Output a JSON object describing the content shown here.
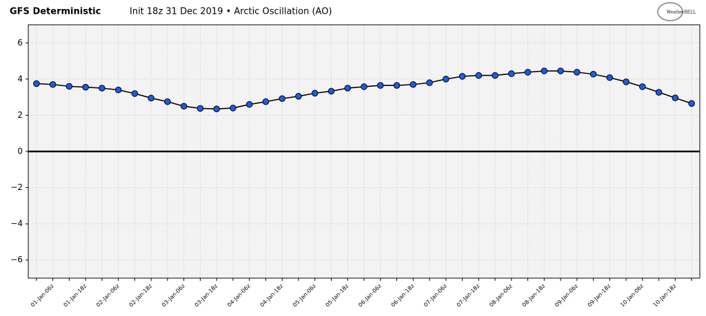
{
  "chart_data": {
    "type": "line",
    "title": "GFS Deterministic",
    "subtitle": "Init 18z 31 Dec 2019 • Arctic Oscillation (AO)",
    "logo": "WeatherBELL",
    "categories": [
      null,
      "01-Jan-06z",
      null,
      "01-Jan-18z",
      null,
      "02-Jan-06z",
      null,
      "02-Jan-18z",
      null,
      "03-Jan-06z",
      null,
      "03-Jan-18z",
      null,
      "04-Jan-06z",
      null,
      "04-Jan-18z",
      null,
      "05-Jan-06z",
      null,
      "05-Jan-18z",
      null,
      "06-Jan-06z",
      null,
      "06-Jan-18z",
      null,
      "07-Jan-06z",
      null,
      "07-Jan-18z",
      null,
      "08-Jan-06z",
      null,
      "08-Jan-18z",
      null,
      "09-Jan-06z",
      null,
      "09-Jan-18z",
      null,
      "10-Jan-06z",
      null,
      "10-Jan-18z",
      null
    ],
    "values": [
      3.75,
      3.7,
      3.6,
      3.55,
      3.5,
      3.4,
      3.2,
      2.95,
      2.75,
      2.5,
      2.38,
      2.35,
      2.4,
      2.6,
      2.75,
      2.92,
      3.05,
      3.22,
      3.33,
      3.5,
      3.58,
      3.65,
      3.65,
      3.7,
      3.8,
      4.0,
      4.15,
      4.2,
      4.2,
      4.3,
      4.38,
      4.45,
      4.45,
      4.38,
      4.27,
      4.08,
      3.85,
      3.58,
      3.27,
      2.96,
      2.65
    ],
    "color": "#1a5ce6",
    "line_color": "#000000",
    "ylim": [
      -7,
      7
    ],
    "yticks": [
      {
        "value": -6,
        "label": "−6"
      },
      {
        "value": -4,
        "label": "−4"
      },
      {
        "value": -2,
        "label": "−2"
      },
      0,
      2,
      4,
      6
    ],
    "hline": 0,
    "grid": true
  }
}
